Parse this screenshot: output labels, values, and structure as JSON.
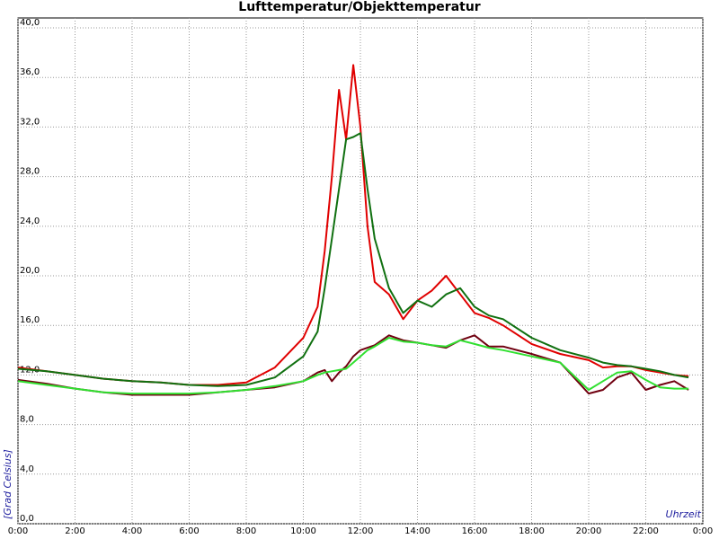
{
  "chart_data": {
    "type": "line",
    "title": "Lufttemperatur/Objekttemperatur",
    "y_label": "[Grad Celsius]",
    "x_label": "Uhrzeit",
    "x": [
      0,
      1,
      2,
      3,
      4,
      5,
      6,
      7,
      8,
      9,
      10,
      10.5,
      10.75,
      11,
      11.25,
      11.5,
      11.75,
      12,
      12.25,
      12.5,
      13,
      13.5,
      14,
      14.5,
      15,
      15.5,
      16,
      16.5,
      17,
      18,
      19,
      20,
      20.5,
      21,
      21.5,
      22,
      22.5,
      23,
      23.5
    ],
    "series": [
      {
        "color": "#e00000",
        "values": [
          12.6,
          12.3,
          12.0,
          11.7,
          11.5,
          11.4,
          11.2,
          11.2,
          11.4,
          12.6,
          15.0,
          17.5,
          22,
          28,
          35,
          31,
          37,
          32,
          24,
          19.5,
          18.5,
          16.5,
          18,
          18.8,
          20,
          18.5,
          17,
          16.6,
          16,
          14.5,
          13.7,
          13.2,
          12.6,
          12.7,
          12.7,
          12.4,
          12.2,
          12.0,
          11.9
        ]
      },
      {
        "color": "#107010",
        "values": [
          12.5,
          12.3,
          12.0,
          11.7,
          11.5,
          11.4,
          11.2,
          11.1,
          11.2,
          11.8,
          13.5,
          15.5,
          19,
          23,
          27,
          31,
          31.2,
          31.5,
          27,
          23,
          19,
          17,
          18,
          17.5,
          18.5,
          19,
          17.5,
          16.8,
          16.5,
          15,
          14,
          13.4,
          13,
          12.8,
          12.7,
          12.5,
          12.3,
          12.0,
          11.8
        ]
      },
      {
        "color": "#700010",
        "values": [
          11.6,
          11.3,
          10.9,
          10.6,
          10.4,
          10.4,
          10.4,
          10.6,
          10.8,
          11.0,
          11.5,
          12.2,
          12.4,
          11.5,
          12.2,
          12.7,
          13.5,
          14,
          14.2,
          14.4,
          15.2,
          14.8,
          14.6,
          14.4,
          14.2,
          14.8,
          15.2,
          14.3,
          14.3,
          13.7,
          13.0,
          10.5,
          10.8,
          11.8,
          12.2,
          10.8,
          11.2,
          11.5,
          10.8
        ]
      },
      {
        "color": "#30e030",
        "values": [
          11.5,
          11.2,
          10.9,
          10.6,
          10.5,
          10.5,
          10.5,
          10.6,
          10.8,
          11.1,
          11.5,
          12.0,
          12.2,
          12.3,
          12.4,
          12.5,
          13,
          13.5,
          14,
          14.3,
          15,
          14.7,
          14.6,
          14.4,
          14.3,
          14.8,
          14.5,
          14.2,
          14.0,
          13.5,
          13.0,
          10.8,
          11.5,
          12.2,
          12.3,
          11.6,
          11.0,
          10.9,
          10.9
        ]
      }
    ],
    "xlim": [
      0,
      24
    ],
    "xticks": [
      {
        "value": 0,
        "label": "0:00"
      },
      {
        "value": 2,
        "label": "2:00"
      },
      {
        "value": 4,
        "label": "4:00"
      },
      {
        "value": 6,
        "label": "6:00"
      },
      {
        "value": 8,
        "label": "8:00"
      },
      {
        "value": 10,
        "label": "10:00"
      },
      {
        "value": 12,
        "label": "12:00"
      },
      {
        "value": 14,
        "label": "14:00"
      },
      {
        "value": 16,
        "label": "16:00"
      },
      {
        "value": 18,
        "label": "18:00"
      },
      {
        "value": 20,
        "label": "20:00"
      },
      {
        "value": 22,
        "label": "22:00"
      },
      {
        "value": 24,
        "label": "0:00"
      }
    ],
    "ylim": [
      0,
      40.8
    ],
    "yticks": [
      {
        "value": 0,
        "label": "0,0"
      },
      {
        "value": 4,
        "label": "4,0"
      },
      {
        "value": 8,
        "label": "8,0"
      },
      {
        "value": 12,
        "label": "12,0"
      },
      {
        "value": 16,
        "label": "16,0"
      },
      {
        "value": 20,
        "label": "20,0"
      },
      {
        "value": 24,
        "label": "24,0"
      },
      {
        "value": 28,
        "label": "28,0"
      },
      {
        "value": 32,
        "label": "32,0"
      },
      {
        "value": 36,
        "label": "36,0"
      },
      {
        "value": 40,
        "label": "40,0"
      }
    ],
    "grid": true
  }
}
